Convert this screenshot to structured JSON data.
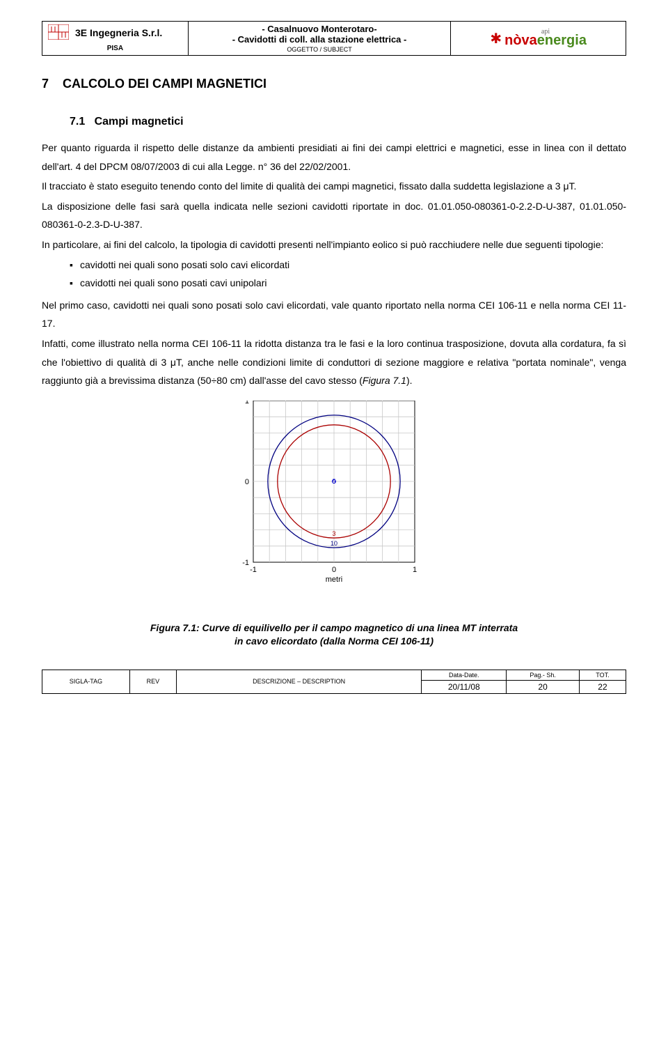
{
  "header": {
    "company": "3E Ingegneria S.r.l.",
    "city": "PISA",
    "title_line1": "- Casalnuovo Monterotaro-",
    "title_line2": "- Cavidotti di coll. alla stazione elettrica -",
    "oggetto": "OGGETTO / SUBJECT",
    "logo_api": "api",
    "logo_nova": "nòva",
    "logo_energia": "energia"
  },
  "section": {
    "number": "7",
    "title": "CALCOLO DEI CAMPI MAGNETICI",
    "sub_number": "7.1",
    "sub_title": "Campi magnetici"
  },
  "paragraphs": {
    "p1": "Per quanto riguarda il rispetto delle distanze da ambienti presidiati ai fini dei campi elettrici e magnetici, esse in linea con il dettato dell'art. 4 del DPCM 08/07/2003 di cui alla Legge. n° 36 del 22/02/2001.",
    "p2": "Il tracciato è stato eseguito tenendo conto del limite di qualità dei campi magnetici, fissato dalla suddetta legislazione a 3 μT.",
    "p3": "La disposizione delle fasi sarà quella indicata nelle sezioni cavidotti riportate in doc. 01.01.050-080361-0-2.2-D-U-387, 01.01.050-080361-0-2.3-D-U-387.",
    "p4": "In particolare, ai fini del calcolo, la tipologia di cavidotti presenti nell'impianto eolico si può racchiudere nelle due seguenti tipologie:",
    "bullet1": "cavidotti nei quali sono posati solo cavi elicordati",
    "bullet2": "cavidotti nei quali sono posati cavi unipolari",
    "p5": "Nel primo caso, cavidotti nei quali sono posati solo cavi elicordati, vale quanto riportato nella norma CEI 106-11 e nella norma CEI 11-17.",
    "p6a": "Infatti, come illustrato nella norma CEI 106-11 la ridotta distanza tra le fasi e la loro continua trasposizione, dovuta alla cordatura, fa sì che l'obiettivo di qualità di 3 μT, anche nelle condizioni limite di conduttori di sezione maggiore e relativa \"portata nominale\", venga raggiunto già a brevissima distanza (50÷80 cm) dall'asse del cavo stesso (",
    "p6b": "Figura 7.1",
    "p6c": ")."
  },
  "figure": {
    "caption_line1": "Figura 7.1: Curve di equilivello per il campo magnetico di una linea MT interrata",
    "caption_line2": "in cavo elicordato (dalla Norma CEI 106-11)",
    "xlabel": "metri",
    "xticks": [
      "-1",
      "0",
      "1"
    ],
    "yticks": [
      "-1",
      "0",
      "1"
    ],
    "outer_radius": 0.82,
    "inner_radius": 0.7,
    "center_labels": [
      "3",
      "10"
    ],
    "marker_label": "5",
    "chart_size": 260,
    "background_color": "#ffffff",
    "grid_color": "#c8c8c8",
    "outer_circle_color": "#000080",
    "inner_circle_color": "#aa0000",
    "axis_color": "#000000",
    "marker_color": "#0000cc",
    "line_width": 1.3
  },
  "footer": {
    "sigla_label": "SIGLA-TAG",
    "rev_label": "REV",
    "desc_label": "DESCRIZIONE – DESCRIPTION",
    "date_label": "Data-Date.",
    "pag_label": "Pag.- Sh.",
    "tot_label": "TOT.",
    "date_val": "20/11/08",
    "pag_val": "20",
    "tot_val": "22"
  }
}
